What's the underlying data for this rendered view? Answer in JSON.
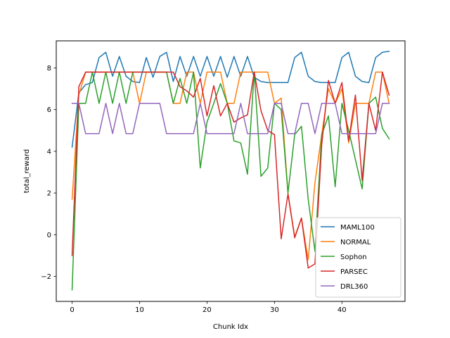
{
  "chart_data": {
    "type": "line",
    "title": "",
    "xlabel": "Chunk Idx",
    "ylabel": "total_reward",
    "xlim": [
      -2.35,
      49.35
    ],
    "ylim": [
      -3.2,
      9.3
    ],
    "xticks": [
      0,
      10,
      20,
      30,
      40
    ],
    "yticks": [
      -2,
      0,
      2,
      4,
      6,
      8
    ],
    "grid": false,
    "legend_position": "lower-right",
    "x": [
      0,
      1,
      2,
      3,
      4,
      5,
      6,
      7,
      8,
      9,
      10,
      11,
      12,
      13,
      14,
      15,
      16,
      17,
      18,
      19,
      20,
      21,
      22,
      23,
      24,
      25,
      26,
      27,
      28,
      29,
      30,
      31,
      32,
      33,
      34,
      35,
      36,
      37,
      38,
      39,
      40,
      41,
      42,
      43,
      44,
      45,
      46,
      47
    ],
    "series": [
      {
        "name": "MAML100",
        "color": "#1f77b4",
        "values": [
          4.2,
          6.8,
          7.2,
          7.3,
          8.5,
          8.75,
          7.6,
          8.55,
          7.6,
          7.35,
          7.3,
          8.5,
          7.55,
          8.55,
          8.75,
          7.35,
          8.55,
          7.6,
          8.55,
          7.6,
          8.55,
          7.6,
          8.55,
          7.55,
          8.55,
          7.6,
          8.55,
          7.55,
          7.35,
          7.3,
          7.3,
          7.3,
          7.3,
          8.5,
          8.75,
          7.6,
          7.35,
          7.3,
          7.3,
          7.3,
          8.5,
          8.75,
          7.6,
          7.35,
          7.3,
          8.5,
          8.75,
          8.8
        ]
      },
      {
        "name": "NORMAL",
        "color": "#ff7f0e",
        "values": [
          1.7,
          6.7,
          7.8,
          7.8,
          7.8,
          7.8,
          7.8,
          7.8,
          7.8,
          7.8,
          6.3,
          7.8,
          7.8,
          7.8,
          7.8,
          6.3,
          6.3,
          7.8,
          7.8,
          6.3,
          7.8,
          7.8,
          7.8,
          6.3,
          6.3,
          7.8,
          7.8,
          7.8,
          7.8,
          7.8,
          6.3,
          6.55,
          2.0,
          -0.1,
          0.8,
          -1.2,
          2.5,
          4.8,
          7.0,
          6.3,
          7.0,
          4.4,
          6.3,
          6.3,
          6.3,
          7.8,
          7.8,
          6.3
        ]
      },
      {
        "name": "Sophon",
        "color": "#2ca02c",
        "values": [
          -2.65,
          6.3,
          6.3,
          7.8,
          6.3,
          7.8,
          6.3,
          7.8,
          6.3,
          7.8,
          7.8,
          7.8,
          7.8,
          7.8,
          7.8,
          6.3,
          7.5,
          6.3,
          7.8,
          3.2,
          5.4,
          6.3,
          7.25,
          6.3,
          4.5,
          4.4,
          2.9,
          7.8,
          2.8,
          3.2,
          6.3,
          6.0,
          2.0,
          4.8,
          5.2,
          1.7,
          -0.8,
          4.8,
          5.7,
          2.3,
          6.3,
          5.0,
          3.6,
          2.2,
          6.3,
          6.6,
          5.1,
          4.6
        ]
      },
      {
        "name": "PARSEC",
        "color": "#d62728",
        "values": [
          -1.0,
          7.1,
          7.8,
          7.8,
          7.8,
          7.8,
          7.8,
          7.8,
          7.8,
          7.8,
          7.8,
          7.8,
          7.8,
          7.8,
          7.8,
          7.8,
          7.1,
          6.9,
          6.6,
          7.5,
          5.7,
          7.15,
          5.7,
          6.3,
          5.4,
          5.6,
          5.75,
          7.8,
          5.95,
          5.0,
          4.8,
          -0.2,
          1.95,
          -0.15,
          0.8,
          -1.6,
          -1.4,
          4.3,
          7.4,
          6.3,
          7.3,
          4.5,
          6.7,
          2.6,
          6.3,
          5.0,
          7.8,
          6.7
        ]
      },
      {
        "name": "DRL360",
        "color": "#9467bd",
        "values": [
          6.3,
          6.3,
          4.85,
          4.85,
          4.85,
          6.3,
          4.85,
          6.3,
          4.85,
          4.85,
          6.3,
          6.3,
          6.3,
          6.3,
          4.85,
          4.85,
          4.85,
          4.85,
          4.85,
          6.3,
          4.85,
          4.85,
          4.85,
          4.85,
          4.85,
          6.3,
          4.85,
          4.85,
          4.85,
          4.85,
          6.3,
          6.3,
          4.85,
          4.85,
          6.3,
          6.3,
          4.85,
          6.3,
          6.3,
          6.3,
          4.85,
          4.85,
          4.85,
          4.85,
          4.85,
          4.85,
          6.3,
          6.3
        ]
      }
    ]
  }
}
